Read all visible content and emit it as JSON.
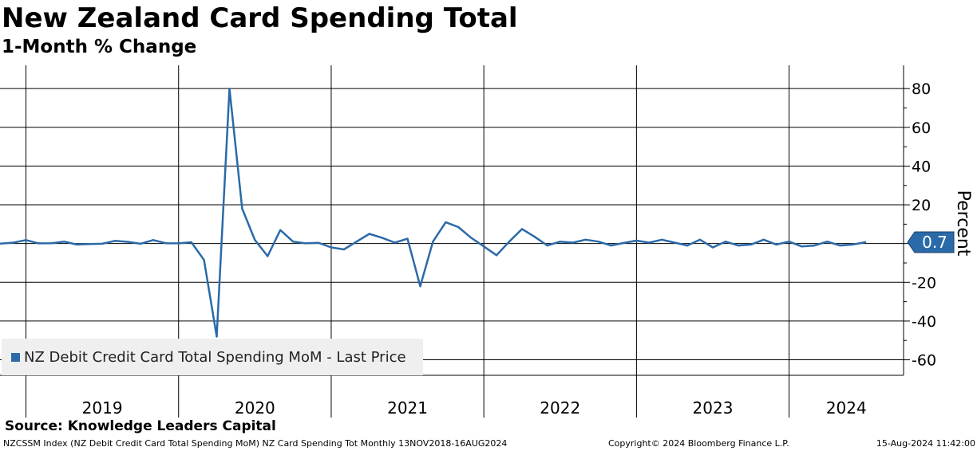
{
  "header": {
    "title": "New Zealand Card Spending Total",
    "subtitle": "1-Month % Change"
  },
  "footer": {
    "source": "Source: Knowledge Leaders Capital",
    "description": "NZCSSM Index (NZ Debit Credit Card Total Spending MoM) NZ Card Spending Tot  Monthly 13NOV2018-16AUG2024",
    "copyright": "Copyright© 2024 Bloomberg Finance L.P.",
    "timestamp": "15-Aug-2024 11:42:00"
  },
  "colors": {
    "series": "#2b6aa8",
    "grid": "#000000",
    "legend_bg": "#efefef"
  },
  "chart_data": {
    "type": "line",
    "title": "New Zealand Card Spending Total",
    "subtitle": "1-Month % Change",
    "ylabel": "Percent",
    "xlabel": "",
    "ylim": [
      -68,
      92
    ],
    "yticks": [
      80,
      60,
      40,
      20,
      0,
      -20,
      -40,
      -60
    ],
    "x_start": "2018-11",
    "x_end_years": [
      2018.83,
      2024.75
    ],
    "year_labels": [
      "2019",
      "2020",
      "2021",
      "2022",
      "2023",
      "2024"
    ],
    "year_boundaries": [
      2019,
      2020,
      2021,
      2022,
      2023,
      2024
    ],
    "last_value_label": "0.7",
    "legend": [
      "NZ Debit Credit Card Total Spending MoM - Last Price"
    ],
    "legend_position": "bottom-left",
    "series": [
      {
        "name": "NZ Debit Credit Card Total Spending MoM - Last Price",
        "values": [
          0,
          0.5,
          1.8,
          0.1,
          0.2,
          1.0,
          -0.5,
          -0.2,
          -0.1,
          1.4,
          0.9,
          -0.1,
          1.8,
          0.2,
          0.1,
          0.7,
          -8.5,
          -48,
          80,
          18,
          1.9,
          -6.5,
          7,
          1,
          0.1,
          0.4,
          -2,
          -3,
          1,
          5,
          3,
          0.5,
          2.5,
          -22,
          1,
          11,
          8.5,
          3,
          -1.5,
          -6,
          1,
          7.5,
          3.5,
          -1,
          1,
          0.5,
          2,
          1,
          -1,
          0.3,
          1.5,
          0.5,
          2,
          0.5,
          -1,
          2,
          -2,
          1,
          -1,
          -0.5,
          2,
          -0.5,
          1,
          -1.5,
          -1,
          1,
          -1,
          -0.5,
          0.7
        ]
      }
    ]
  }
}
